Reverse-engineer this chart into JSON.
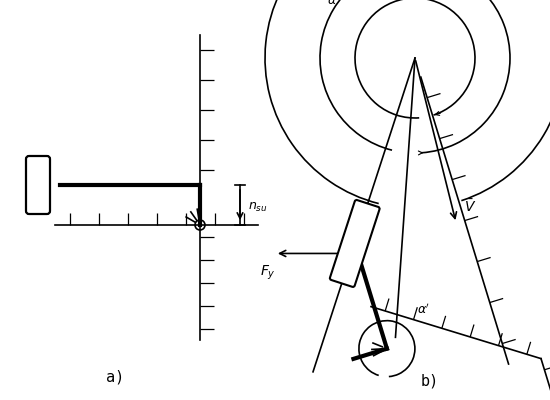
{
  "bg_color": "#ffffff",
  "line_color": "#000000",
  "thick_lw": 3.0,
  "thin_lw": 1.2,
  "hatch_lw": 0.9,
  "label_a": "a)",
  "label_b": "b)",
  "figsize": [
    5.5,
    4.0
  ],
  "dpi": 100
}
